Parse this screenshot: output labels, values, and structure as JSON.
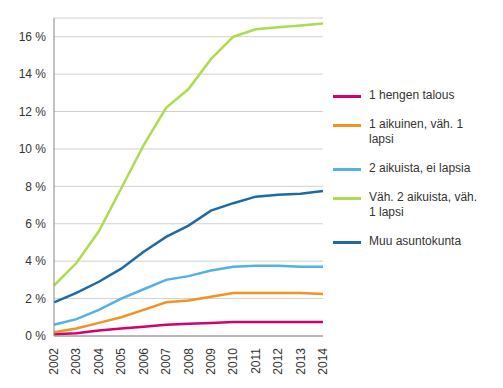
{
  "chart_data": {
    "type": "line",
    "categories": [
      "2002",
      "2003",
      "2004",
      "2005",
      "2006",
      "2007",
      "2008",
      "2009",
      "2010",
      "2011",
      "2012",
      "2013",
      "2014"
    ],
    "series": [
      {
        "name": "1 hengen talous",
        "color": "#d4006f",
        "values": [
          0.1,
          0.15,
          0.3,
          0.4,
          0.5,
          0.6,
          0.65,
          0.7,
          0.75,
          0.75,
          0.75,
          0.75,
          0.75
        ]
      },
      {
        "name": "1 aikuinen, väh. 1 lapsi",
        "color": "#f39121",
        "values": [
          0.2,
          0.4,
          0.7,
          1.0,
          1.4,
          1.8,
          1.9,
          2.1,
          2.3,
          2.3,
          2.3,
          2.3,
          2.25
        ]
      },
      {
        "name": "2 aikuista, ei lapsia",
        "color": "#55b0e3",
        "values": [
          0.6,
          0.9,
          1.4,
          2.0,
          2.5,
          3.0,
          3.2,
          3.5,
          3.7,
          3.75,
          3.75,
          3.7,
          3.7
        ]
      },
      {
        "name": "Väh. 2 aikuista, väh. 1 lapsi",
        "color": "#addc4f",
        "values": [
          2.7,
          3.9,
          5.6,
          7.9,
          10.2,
          12.2,
          13.2,
          14.8,
          16.0,
          16.4,
          16.5,
          16.6,
          16.7
        ]
      },
      {
        "name": "Muu asuntokunta",
        "color": "#1f6aa5",
        "values": [
          1.8,
          2.3,
          2.9,
          3.6,
          4.5,
          5.3,
          5.9,
          6.7,
          7.1,
          7.45,
          7.55,
          7.6,
          7.75
        ]
      }
    ],
    "ylim": [
      0,
      17
    ],
    "yticks": [
      {
        "value": 0,
        "label": "0 %"
      },
      {
        "value": 2,
        "label": "2 %"
      },
      {
        "value": 4,
        "label": "4 %"
      },
      {
        "value": 6,
        "label": "6 %"
      },
      {
        "value": 8,
        "label": "8 %"
      },
      {
        "value": 10,
        "label": "10 %"
      },
      {
        "value": 12,
        "label": "12 %"
      },
      {
        "value": 14,
        "label": "14 %"
      },
      {
        "value": 16,
        "label": "16 %"
      }
    ],
    "grid": true,
    "legend": "right"
  }
}
